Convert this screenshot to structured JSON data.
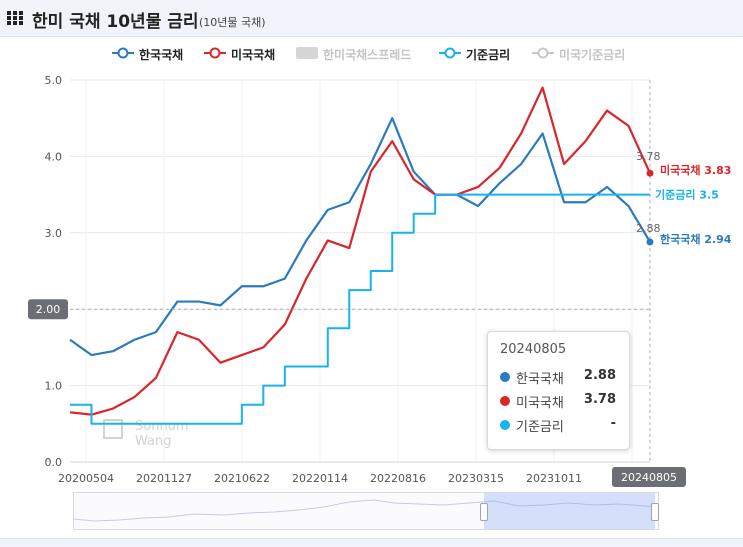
{
  "header": {
    "title": "한미 국채 10년물 금리",
    "subtitle": "(10년물 국채)"
  },
  "legend": [
    {
      "label": "한국국채",
      "color": "#2b7bbf",
      "active": true
    },
    {
      "label": "미국국채",
      "color": "#d9262b",
      "active": true
    },
    {
      "label": "한미국채스프레드",
      "color": "#cfcfcf",
      "active": false
    },
    {
      "label": "기준금리",
      "color": "#17b3ec",
      "active": true
    },
    {
      "label": "미국기준금리",
      "color": "#c8c8c8",
      "active": false
    }
  ],
  "watermark": {
    "line1": "Sonnum",
    "line2": "Wang"
  },
  "crosshair_y_label": "2.00",
  "crosshair_x_label": "20240805",
  "tooltip": {
    "date": "20240805",
    "rows": [
      {
        "name": "한국국채",
        "value": "2.88",
        "color": "#2b7bbf"
      },
      {
        "name": "미국국채",
        "value": "3.78",
        "color": "#d9262b"
      },
      {
        "name": "기준금리",
        "value": "-",
        "color": "#17b3ec"
      }
    ]
  },
  "end_labels": {
    "korea": "한국국채 2.94",
    "us": "미국국채 3.83",
    "base": "기준금리 3.5"
  },
  "point_labels": {
    "korea": "2.88",
    "us": "3.78"
  },
  "chart_data": {
    "type": "line",
    "ylim": [
      0,
      5
    ],
    "yticks": [
      0.0,
      1.0,
      2.0,
      3.0,
      4.0,
      5.0
    ],
    "ytick_labels": [
      "0.0",
      "1.0",
      "2.0",
      "3.0",
      "4.0",
      "5.0"
    ],
    "xtick_labels": [
      "20200504",
      "20201127",
      "20210622",
      "20220114",
      "20220816",
      "20230315",
      "20231011",
      "20240805"
    ],
    "x": [
      "2020-05",
      "2020-07",
      "2020-09",
      "2020-11",
      "2021-01",
      "2021-03",
      "2021-05",
      "2021-07",
      "2021-09",
      "2021-11",
      "2022-01",
      "2022-03",
      "2022-05",
      "2022-07",
      "2022-09",
      "2022-10",
      "2022-11",
      "2023-01",
      "2023-03",
      "2023-05",
      "2023-07",
      "2023-09",
      "2023-10",
      "2023-12",
      "2024-02",
      "2024-04",
      "2024-06",
      "2024-08"
    ],
    "series": [
      {
        "name": "한국국채",
        "color": "#2b7bbf",
        "values": [
          1.6,
          1.4,
          1.45,
          1.6,
          1.7,
          2.1,
          2.1,
          2.05,
          2.3,
          2.3,
          2.4,
          2.9,
          3.3,
          3.4,
          3.9,
          4.5,
          3.8,
          3.5,
          3.5,
          3.35,
          3.65,
          3.9,
          4.3,
          3.4,
          3.4,
          3.6,
          3.35,
          2.88
        ]
      },
      {
        "name": "미국국채",
        "color": "#d9262b",
        "values": [
          0.65,
          0.62,
          0.7,
          0.85,
          1.1,
          1.7,
          1.6,
          1.3,
          1.4,
          1.5,
          1.8,
          2.4,
          2.9,
          2.8,
          3.8,
          4.2,
          3.7,
          3.5,
          3.5,
          3.6,
          3.85,
          4.3,
          4.9,
          3.9,
          4.2,
          4.6,
          4.4,
          3.78
        ]
      },
      {
        "name": "기준금리",
        "color": "#17b3ec",
        "values": [
          0.75,
          0.5,
          0.5,
          0.5,
          0.5,
          0.5,
          0.5,
          0.5,
          0.75,
          1.0,
          1.25,
          1.25,
          1.75,
          2.25,
          2.5,
          3.0,
          3.25,
          3.5,
          3.5,
          3.5,
          3.5,
          3.5,
          3.5,
          3.5,
          3.5,
          3.5,
          3.5,
          3.5
        ]
      }
    ]
  }
}
